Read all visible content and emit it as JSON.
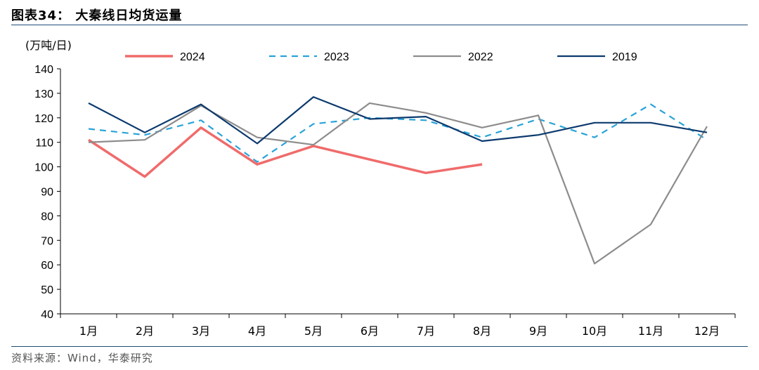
{
  "figure": {
    "title": "图表34：  大秦线日均货运量",
    "source": "资料来源：Wind，华泰研究"
  },
  "chart_data": {
    "type": "line",
    "ylabel": "(万吨/日)",
    "ylim": [
      40,
      140
    ],
    "yticks": [
      40,
      50,
      60,
      70,
      80,
      90,
      100,
      110,
      120,
      130,
      140
    ],
    "categories": [
      "1月",
      "2月",
      "3月",
      "4月",
      "5月",
      "6月",
      "7月",
      "8月",
      "9月",
      "10月",
      "11月",
      "12月"
    ],
    "legend_position": "top",
    "grid": false,
    "series": [
      {
        "name": "2024",
        "color": "#f06b6b",
        "style": "solid",
        "width": 3.5,
        "values": [
          111,
          96,
          116,
          101,
          108.5,
          null,
          97.5,
          101,
          null,
          null,
          null,
          null
        ]
      },
      {
        "name": "2023",
        "color": "#29a3d8",
        "style": "dashed",
        "width": 2.2,
        "values": [
          115.5,
          113,
          119,
          102,
          117.5,
          120,
          119,
          112,
          119.5,
          112,
          125.5,
          111
        ]
      },
      {
        "name": "2022",
        "color": "#8c8c8c",
        "style": "solid",
        "width": 2.2,
        "values": [
          110,
          111,
          125,
          112,
          109,
          126,
          122,
          116,
          121,
          60.5,
          76.5,
          116.5
        ]
      },
      {
        "name": "2019",
        "color": "#0c3a6e",
        "style": "solid",
        "width": 2.2,
        "values": [
          126,
          114,
          125.5,
          109.5,
          128.5,
          119.5,
          120.5,
          110.5,
          113,
          118,
          118,
          114
        ]
      }
    ]
  }
}
